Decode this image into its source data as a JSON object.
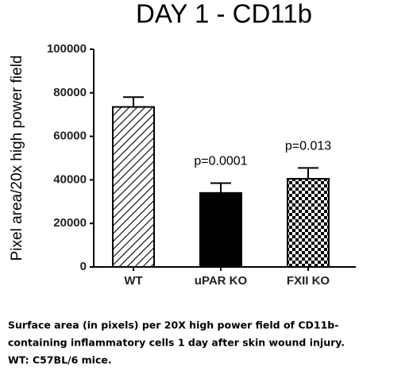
{
  "chart_data": {
    "type": "bar",
    "title": "DAY 1 - CD11b",
    "y_label": "Pixel area/20x high power field",
    "categories": [
      "WT",
      "uPAR KO",
      "FXII KO"
    ],
    "values": [
      73500,
      34000,
      40500
    ],
    "errors": [
      4500,
      4500,
      5000
    ],
    "fills": [
      "hatch",
      "solid",
      "checker"
    ],
    "color": "#000000",
    "annotations": [
      null,
      "p=0.0001",
      "p=0.013"
    ],
    "ylim": [
      0,
      100000
    ],
    "yticks": [
      0,
      20000,
      40000,
      60000,
      80000,
      100000
    ],
    "grid": false
  },
  "caption": [
    "Surface area (in pixels) per 20X high power field of CD11b-",
    "containing inflammatory cells 1 day after skin wound injury.",
    "WT: C57BL/6 mice."
  ]
}
